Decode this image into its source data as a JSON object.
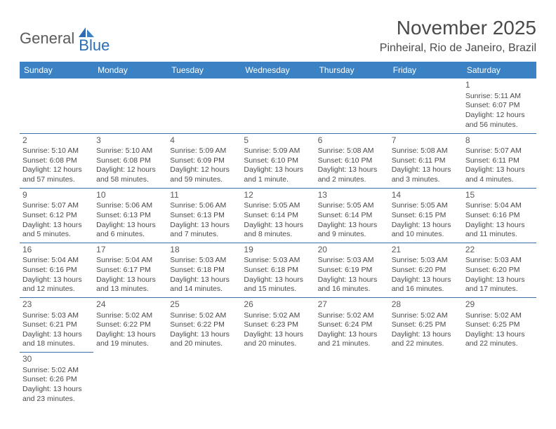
{
  "logo": {
    "part1": "General",
    "part2": "Blue"
  },
  "title": "November 2025",
  "location": "Pinheiral, Rio de Janeiro, Brazil",
  "calendar": {
    "header_bg": "#3b82c4",
    "header_fg": "#ffffff",
    "border_color": "#3b6fa5",
    "text_color": "#4a4a4a",
    "day_headers": [
      "Sunday",
      "Monday",
      "Tuesday",
      "Wednesday",
      "Thursday",
      "Friday",
      "Saturday"
    ],
    "weeks": [
      [
        null,
        null,
        null,
        null,
        null,
        null,
        {
          "n": "1",
          "sr": "Sunrise: 5:11 AM",
          "ss": "Sunset: 6:07 PM",
          "dl1": "Daylight: 12 hours",
          "dl2": "and 56 minutes."
        }
      ],
      [
        {
          "n": "2",
          "sr": "Sunrise: 5:10 AM",
          "ss": "Sunset: 6:08 PM",
          "dl1": "Daylight: 12 hours",
          "dl2": "and 57 minutes."
        },
        {
          "n": "3",
          "sr": "Sunrise: 5:10 AM",
          "ss": "Sunset: 6:08 PM",
          "dl1": "Daylight: 12 hours",
          "dl2": "and 58 minutes."
        },
        {
          "n": "4",
          "sr": "Sunrise: 5:09 AM",
          "ss": "Sunset: 6:09 PM",
          "dl1": "Daylight: 12 hours",
          "dl2": "and 59 minutes."
        },
        {
          "n": "5",
          "sr": "Sunrise: 5:09 AM",
          "ss": "Sunset: 6:10 PM",
          "dl1": "Daylight: 13 hours",
          "dl2": "and 1 minute."
        },
        {
          "n": "6",
          "sr": "Sunrise: 5:08 AM",
          "ss": "Sunset: 6:10 PM",
          "dl1": "Daylight: 13 hours",
          "dl2": "and 2 minutes."
        },
        {
          "n": "7",
          "sr": "Sunrise: 5:08 AM",
          "ss": "Sunset: 6:11 PM",
          "dl1": "Daylight: 13 hours",
          "dl2": "and 3 minutes."
        },
        {
          "n": "8",
          "sr": "Sunrise: 5:07 AM",
          "ss": "Sunset: 6:11 PM",
          "dl1": "Daylight: 13 hours",
          "dl2": "and 4 minutes."
        }
      ],
      [
        {
          "n": "9",
          "sr": "Sunrise: 5:07 AM",
          "ss": "Sunset: 6:12 PM",
          "dl1": "Daylight: 13 hours",
          "dl2": "and 5 minutes."
        },
        {
          "n": "10",
          "sr": "Sunrise: 5:06 AM",
          "ss": "Sunset: 6:13 PM",
          "dl1": "Daylight: 13 hours",
          "dl2": "and 6 minutes."
        },
        {
          "n": "11",
          "sr": "Sunrise: 5:06 AM",
          "ss": "Sunset: 6:13 PM",
          "dl1": "Daylight: 13 hours",
          "dl2": "and 7 minutes."
        },
        {
          "n": "12",
          "sr": "Sunrise: 5:05 AM",
          "ss": "Sunset: 6:14 PM",
          "dl1": "Daylight: 13 hours",
          "dl2": "and 8 minutes."
        },
        {
          "n": "13",
          "sr": "Sunrise: 5:05 AM",
          "ss": "Sunset: 6:14 PM",
          "dl1": "Daylight: 13 hours",
          "dl2": "and 9 minutes."
        },
        {
          "n": "14",
          "sr": "Sunrise: 5:05 AM",
          "ss": "Sunset: 6:15 PM",
          "dl1": "Daylight: 13 hours",
          "dl2": "and 10 minutes."
        },
        {
          "n": "15",
          "sr": "Sunrise: 5:04 AM",
          "ss": "Sunset: 6:16 PM",
          "dl1": "Daylight: 13 hours",
          "dl2": "and 11 minutes."
        }
      ],
      [
        {
          "n": "16",
          "sr": "Sunrise: 5:04 AM",
          "ss": "Sunset: 6:16 PM",
          "dl1": "Daylight: 13 hours",
          "dl2": "and 12 minutes."
        },
        {
          "n": "17",
          "sr": "Sunrise: 5:04 AM",
          "ss": "Sunset: 6:17 PM",
          "dl1": "Daylight: 13 hours",
          "dl2": "and 13 minutes."
        },
        {
          "n": "18",
          "sr": "Sunrise: 5:03 AM",
          "ss": "Sunset: 6:18 PM",
          "dl1": "Daylight: 13 hours",
          "dl2": "and 14 minutes."
        },
        {
          "n": "19",
          "sr": "Sunrise: 5:03 AM",
          "ss": "Sunset: 6:18 PM",
          "dl1": "Daylight: 13 hours",
          "dl2": "and 15 minutes."
        },
        {
          "n": "20",
          "sr": "Sunrise: 5:03 AM",
          "ss": "Sunset: 6:19 PM",
          "dl1": "Daylight: 13 hours",
          "dl2": "and 16 minutes."
        },
        {
          "n": "21",
          "sr": "Sunrise: 5:03 AM",
          "ss": "Sunset: 6:20 PM",
          "dl1": "Daylight: 13 hours",
          "dl2": "and 16 minutes."
        },
        {
          "n": "22",
          "sr": "Sunrise: 5:03 AM",
          "ss": "Sunset: 6:20 PM",
          "dl1": "Daylight: 13 hours",
          "dl2": "and 17 minutes."
        }
      ],
      [
        {
          "n": "23",
          "sr": "Sunrise: 5:03 AM",
          "ss": "Sunset: 6:21 PM",
          "dl1": "Daylight: 13 hours",
          "dl2": "and 18 minutes."
        },
        {
          "n": "24",
          "sr": "Sunrise: 5:02 AM",
          "ss": "Sunset: 6:22 PM",
          "dl1": "Daylight: 13 hours",
          "dl2": "and 19 minutes."
        },
        {
          "n": "25",
          "sr": "Sunrise: 5:02 AM",
          "ss": "Sunset: 6:22 PM",
          "dl1": "Daylight: 13 hours",
          "dl2": "and 20 minutes."
        },
        {
          "n": "26",
          "sr": "Sunrise: 5:02 AM",
          "ss": "Sunset: 6:23 PM",
          "dl1": "Daylight: 13 hours",
          "dl2": "and 20 minutes."
        },
        {
          "n": "27",
          "sr": "Sunrise: 5:02 AM",
          "ss": "Sunset: 6:24 PM",
          "dl1": "Daylight: 13 hours",
          "dl2": "and 21 minutes."
        },
        {
          "n": "28",
          "sr": "Sunrise: 5:02 AM",
          "ss": "Sunset: 6:25 PM",
          "dl1": "Daylight: 13 hours",
          "dl2": "and 22 minutes."
        },
        {
          "n": "29",
          "sr": "Sunrise: 5:02 AM",
          "ss": "Sunset: 6:25 PM",
          "dl1": "Daylight: 13 hours",
          "dl2": "and 22 minutes."
        }
      ],
      [
        {
          "n": "30",
          "sr": "Sunrise: 5:02 AM",
          "ss": "Sunset: 6:26 PM",
          "dl1": "Daylight: 13 hours",
          "dl2": "and 23 minutes."
        },
        null,
        null,
        null,
        null,
        null,
        null
      ]
    ]
  }
}
